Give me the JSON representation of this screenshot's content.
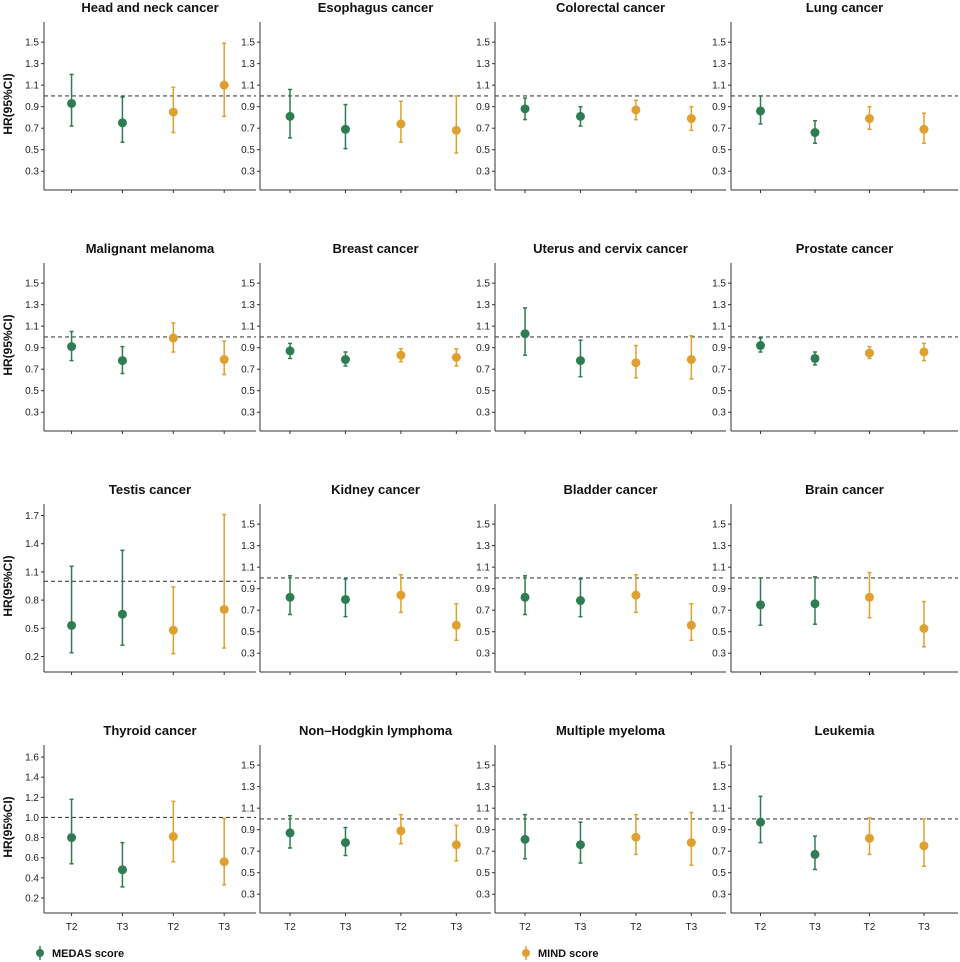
{
  "chart_data": {
    "type": "scatter",
    "subtype": "forest-plot-grid",
    "ylabel": "HR(95%CI)",
    "categories": [
      "T2",
      "T3",
      "T2",
      "T3"
    ],
    "reference_line": 1.0,
    "legend": [
      {
        "name": "MEDAS score",
        "color": "#2e7d52"
      },
      {
        "name": "MIND score",
        "color": "#e0a030"
      }
    ],
    "point_colors": [
      "#2e7d52",
      "#2e7d52",
      "#e0a030",
      "#e0a030"
    ],
    "panels": [
      {
        "title": "Head and neck cancer",
        "ylim": [
          0.2,
          1.65
        ],
        "yticks": [
          0.3,
          0.5,
          0.7,
          0.9,
          1.1,
          1.3,
          1.5
        ],
        "tick_labels": [
          "0.3",
          "0.5",
          "0.7",
          "0.9",
          "1.1",
          "1.3",
          "1.5"
        ],
        "points": [
          {
            "hr": 0.93,
            "lo": 0.72,
            "hi": 1.2
          },
          {
            "hr": 0.75,
            "lo": 0.57,
            "hi": 0.99
          },
          {
            "hr": 0.85,
            "lo": 0.66,
            "hi": 1.08
          },
          {
            "hr": 1.1,
            "lo": 0.81,
            "hi": 1.49
          }
        ]
      },
      {
        "title": "Esophagus cancer",
        "ylim": [
          0.2,
          1.65
        ],
        "yticks": [
          0.3,
          0.5,
          0.7,
          0.9,
          1.1,
          1.3,
          1.5
        ],
        "tick_labels": [
          "0.3",
          "0.5",
          "0.7",
          "0.9",
          "1.1",
          "1.3",
          "1.5"
        ],
        "points": [
          {
            "hr": 0.81,
            "lo": 0.61,
            "hi": 1.06
          },
          {
            "hr": 0.69,
            "lo": 0.51,
            "hi": 0.92
          },
          {
            "hr": 0.74,
            "lo": 0.57,
            "hi": 0.95
          },
          {
            "hr": 0.68,
            "lo": 0.47,
            "hi": 1.0
          }
        ]
      },
      {
        "title": "Colorectal cancer",
        "ylim": [
          0.2,
          1.65
        ],
        "yticks": [
          0.3,
          0.5,
          0.7,
          0.9,
          1.1,
          1.3,
          1.5
        ],
        "tick_labels": [
          "0.3",
          "0.5",
          "0.7",
          "0.9",
          "1.1",
          "1.3",
          "1.5"
        ],
        "points": [
          {
            "hr": 0.88,
            "lo": 0.78,
            "hi": 0.98
          },
          {
            "hr": 0.81,
            "lo": 0.72,
            "hi": 0.9
          },
          {
            "hr": 0.87,
            "lo": 0.78,
            "hi": 0.96
          },
          {
            "hr": 0.79,
            "lo": 0.68,
            "hi": 0.9
          }
        ]
      },
      {
        "title": "Lung cancer",
        "ylim": [
          0.2,
          1.65
        ],
        "yticks": [
          0.3,
          0.5,
          0.7,
          0.9,
          1.1,
          1.3,
          1.5
        ],
        "tick_labels": [
          "0.3",
          "0.5",
          "0.7",
          "0.9",
          "1.1",
          "1.3",
          "1.5"
        ],
        "points": [
          {
            "hr": 0.86,
            "lo": 0.74,
            "hi": 1.0
          },
          {
            "hr": 0.66,
            "lo": 0.56,
            "hi": 0.77
          },
          {
            "hr": 0.79,
            "lo": 0.69,
            "hi": 0.9
          },
          {
            "hr": 0.69,
            "lo": 0.56,
            "hi": 0.84
          }
        ]
      },
      {
        "title": "Malignant melanoma",
        "ylim": [
          0.2,
          1.65
        ],
        "yticks": [
          0.3,
          0.5,
          0.7,
          0.9,
          1.1,
          1.3,
          1.5
        ],
        "tick_labels": [
          "0.3",
          "0.5",
          "0.7",
          "0.9",
          "1.1",
          "1.3",
          "1.5"
        ],
        "points": [
          {
            "hr": 0.91,
            "lo": 0.78,
            "hi": 1.05
          },
          {
            "hr": 0.78,
            "lo": 0.66,
            "hi": 0.91
          },
          {
            "hr": 0.99,
            "lo": 0.86,
            "hi": 1.13
          },
          {
            "hr": 0.79,
            "lo": 0.65,
            "hi": 0.96
          }
        ]
      },
      {
        "title": "Breast cancer",
        "ylim": [
          0.2,
          1.65
        ],
        "yticks": [
          0.3,
          0.5,
          0.7,
          0.9,
          1.1,
          1.3,
          1.5
        ],
        "tick_labels": [
          "0.3",
          "0.5",
          "0.7",
          "0.9",
          "1.1",
          "1.3",
          "1.5"
        ],
        "points": [
          {
            "hr": 0.87,
            "lo": 0.8,
            "hi": 0.94
          },
          {
            "hr": 0.79,
            "lo": 0.73,
            "hi": 0.86
          },
          {
            "hr": 0.83,
            "lo": 0.77,
            "hi": 0.89
          },
          {
            "hr": 0.81,
            "lo": 0.73,
            "hi": 0.89
          }
        ]
      },
      {
        "title": "Uterus and cervix cancer",
        "ylim": [
          0.2,
          1.65
        ],
        "yticks": [
          0.3,
          0.5,
          0.7,
          0.9,
          1.1,
          1.3,
          1.5
        ],
        "tick_labels": [
          "0.3",
          "0.5",
          "0.7",
          "0.9",
          "1.1",
          "1.3",
          "1.5"
        ],
        "points": [
          {
            "hr": 1.03,
            "lo": 0.83,
            "hi": 1.27
          },
          {
            "hr": 0.78,
            "lo": 0.63,
            "hi": 0.97
          },
          {
            "hr": 0.76,
            "lo": 0.62,
            "hi": 0.92
          },
          {
            "hr": 0.79,
            "lo": 0.61,
            "hi": 1.01
          }
        ]
      },
      {
        "title": "Prostate cancer",
        "ylim": [
          0.2,
          1.65
        ],
        "yticks": [
          0.3,
          0.5,
          0.7,
          0.9,
          1.1,
          1.3,
          1.5
        ],
        "tick_labels": [
          "0.3",
          "0.5",
          "0.7",
          "0.9",
          "1.1",
          "1.3",
          "1.5"
        ],
        "points": [
          {
            "hr": 0.92,
            "lo": 0.86,
            "hi": 0.99
          },
          {
            "hr": 0.8,
            "lo": 0.74,
            "hi": 0.86
          },
          {
            "hr": 0.85,
            "lo": 0.8,
            "hi": 0.91
          },
          {
            "hr": 0.86,
            "lo": 0.78,
            "hi": 0.94
          }
        ]
      },
      {
        "title": "Testis cancer",
        "ylim": [
          0.12,
          1.78
        ],
        "yticks": [
          0.2,
          0.5,
          0.8,
          1.1,
          1.4,
          1.7
        ],
        "tick_labels": [
          "0.2",
          "0.5",
          "0.8",
          "1.1",
          "1.4",
          "1.7"
        ],
        "points": [
          {
            "hr": 0.53,
            "lo": 0.24,
            "hi": 1.16
          },
          {
            "hr": 0.65,
            "lo": 0.32,
            "hi": 1.33
          },
          {
            "hr": 0.48,
            "lo": 0.23,
            "hi": 0.94
          },
          {
            "hr": 0.7,
            "lo": 0.29,
            "hi": 1.71
          }
        ]
      },
      {
        "title": "Kidney cancer",
        "ylim": [
          0.2,
          1.65
        ],
        "yticks": [
          0.3,
          0.5,
          0.7,
          0.9,
          1.1,
          1.3,
          1.5
        ],
        "tick_labels": [
          "0.3",
          "0.5",
          "0.7",
          "0.9",
          "1.1",
          "1.3",
          "1.5"
        ],
        "points": [
          {
            "hr": 0.82,
            "lo": 0.66,
            "hi": 1.02
          },
          {
            "hr": 0.8,
            "lo": 0.64,
            "hi": 0.99
          },
          {
            "hr": 0.84,
            "lo": 0.68,
            "hi": 1.03
          },
          {
            "hr": 0.56,
            "lo": 0.42,
            "hi": 0.76
          }
        ]
      },
      {
        "title": "Bladder cancer",
        "ylim": [
          0.2,
          1.65
        ],
        "yticks": [
          0.3,
          0.5,
          0.7,
          0.9,
          1.1,
          1.3,
          1.5
        ],
        "tick_labels": [
          "0.3",
          "0.5",
          "0.7",
          "0.9",
          "1.1",
          "1.3",
          "1.5"
        ],
        "points": [
          {
            "hr": 0.82,
            "lo": 0.66,
            "hi": 1.02
          },
          {
            "hr": 0.79,
            "lo": 0.64,
            "hi": 0.99
          },
          {
            "hr": 0.84,
            "lo": 0.68,
            "hi": 1.03
          },
          {
            "hr": 0.56,
            "lo": 0.42,
            "hi": 0.76
          }
        ]
      },
      {
        "title": "Brain cancer",
        "ylim": [
          0.2,
          1.65
        ],
        "yticks": [
          0.3,
          0.5,
          0.7,
          0.9,
          1.1,
          1.3,
          1.5
        ],
        "tick_labels": [
          "0.3",
          "0.5",
          "0.7",
          "0.9",
          "1.1",
          "1.3",
          "1.5"
        ],
        "points": [
          {
            "hr": 0.75,
            "lo": 0.56,
            "hi": 1.0
          },
          {
            "hr": 0.76,
            "lo": 0.57,
            "hi": 1.01
          },
          {
            "hr": 0.82,
            "lo": 0.63,
            "hi": 1.05
          },
          {
            "hr": 0.53,
            "lo": 0.36,
            "hi": 0.78
          }
        ]
      },
      {
        "title": "Thyroid cancer",
        "ylim": [
          0.13,
          1.68
        ],
        "yticks": [
          0.2,
          0.4,
          0.6,
          0.8,
          1.0,
          1.2,
          1.4,
          1.6
        ],
        "tick_labels": [
          "0.2",
          "0.4",
          "0.6",
          "0.8",
          "1.0",
          "1.2",
          "1.4",
          "1.6"
        ],
        "points": [
          {
            "hr": 0.8,
            "lo": 0.54,
            "hi": 1.18
          },
          {
            "hr": 0.48,
            "lo": 0.31,
            "hi": 0.75
          },
          {
            "hr": 0.81,
            "lo": 0.56,
            "hi": 1.16
          },
          {
            "hr": 0.56,
            "lo": 0.33,
            "hi": 0.99
          }
        ]
      },
      {
        "title": "Non–Hodgkin lymphoma",
        "ylim": [
          0.2,
          1.65
        ],
        "yticks": [
          0.3,
          0.5,
          0.7,
          0.9,
          1.1,
          1.3,
          1.5
        ],
        "tick_labels": [
          "0.3",
          "0.5",
          "0.7",
          "0.9",
          "1.1",
          "1.3",
          "1.5"
        ],
        "points": [
          {
            "hr": 0.87,
            "lo": 0.73,
            "hi": 1.03
          },
          {
            "hr": 0.78,
            "lo": 0.66,
            "hi": 0.92
          },
          {
            "hr": 0.89,
            "lo": 0.77,
            "hi": 1.04
          },
          {
            "hr": 0.76,
            "lo": 0.61,
            "hi": 0.94
          }
        ]
      },
      {
        "title": "Multiple myeloma",
        "ylim": [
          0.2,
          1.65
        ],
        "yticks": [
          0.3,
          0.5,
          0.7,
          0.9,
          1.1,
          1.3,
          1.5
        ],
        "tick_labels": [
          "0.3",
          "0.5",
          "0.7",
          "0.9",
          "1.1",
          "1.3",
          "1.5"
        ],
        "points": [
          {
            "hr": 0.81,
            "lo": 0.63,
            "hi": 1.04
          },
          {
            "hr": 0.76,
            "lo": 0.59,
            "hi": 0.97
          },
          {
            "hr": 0.83,
            "lo": 0.67,
            "hi": 1.04
          },
          {
            "hr": 0.78,
            "lo": 0.57,
            "hi": 1.06
          }
        ]
      },
      {
        "title": "Leukemia",
        "ylim": [
          0.2,
          1.65
        ],
        "yticks": [
          0.3,
          0.5,
          0.7,
          0.9,
          1.1,
          1.3,
          1.5
        ],
        "tick_labels": [
          "0.3",
          "0.5",
          "0.7",
          "0.9",
          "1.1",
          "1.3",
          "1.5"
        ],
        "points": [
          {
            "hr": 0.97,
            "lo": 0.78,
            "hi": 1.21
          },
          {
            "hr": 0.67,
            "lo": 0.53,
            "hi": 0.84
          },
          {
            "hr": 0.82,
            "lo": 0.67,
            "hi": 1.01
          },
          {
            "hr": 0.75,
            "lo": 0.56,
            "hi": 1.0
          }
        ]
      }
    ]
  }
}
